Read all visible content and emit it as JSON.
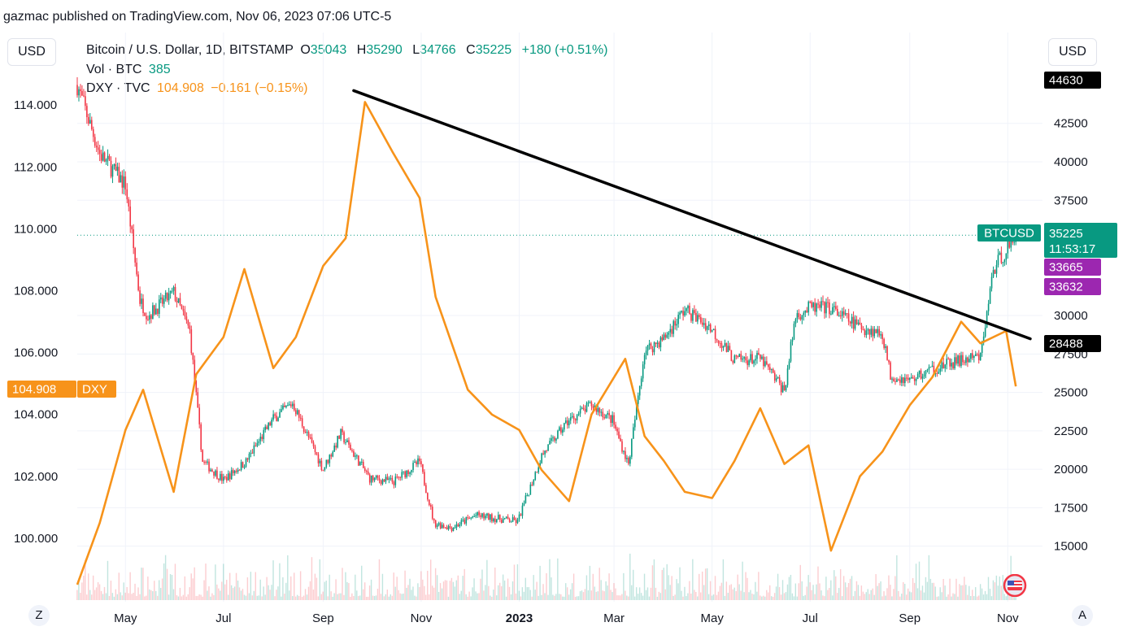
{
  "attribution": "gazmac published on TradingView.com, Nov 06, 2023 07:06 UTC-5",
  "currency_left": "USD",
  "currency_right": "USD",
  "legend": {
    "main_title": "Bitcoin / U.S. Dollar, 1D, BITSTAMP",
    "o_label": "O",
    "o_value": "35043",
    "h_label": "H",
    "h_value": "35290",
    "l_label": "L",
    "l_value": "34766",
    "c_label": "C",
    "c_value": "35225",
    "change": "+180 (+0.51%)",
    "vol_label": "Vol · BTC",
    "vol_value": "385",
    "dxy_label": "DXY · TVC",
    "dxy_value": "104.908",
    "dxy_change": "−0.161 (−0.15%)"
  },
  "buttons": {
    "z": "Z",
    "a": "A"
  },
  "colors": {
    "btc_up": "#089981",
    "btc_down": "#f23645",
    "dxy": "#f7931a",
    "trendline": "#000000",
    "label_black": "#000000",
    "label_purple": "#9c27b0",
    "label_green": "#089981"
  },
  "chart_data": {
    "type": "line",
    "series": [
      {
        "name": "BTCUSD",
        "style": "candlestick",
        "axis": "right",
        "dates": [
          "2022-04-01",
          "2022-04-15",
          "2022-05-01",
          "2022-05-10",
          "2022-05-15",
          "2022-05-31",
          "2022-06-10",
          "2022-06-18",
          "2022-07-01",
          "2022-07-15",
          "2022-08-01",
          "2022-08-13",
          "2022-09-01",
          "2022-09-12",
          "2022-09-30",
          "2022-10-15",
          "2022-10-31",
          "2022-11-09",
          "2022-11-20",
          "2022-12-05",
          "2022-12-31",
          "2023-01-15",
          "2023-01-31",
          "2023-02-15",
          "2023-02-28",
          "2023-03-10",
          "2023-03-20",
          "2023-04-01",
          "2023-04-14",
          "2023-04-30",
          "2023-05-15",
          "2023-05-31",
          "2023-06-15",
          "2023-06-22",
          "2023-07-01",
          "2023-07-13",
          "2023-07-31",
          "2023-08-15",
          "2023-08-20",
          "2023-09-01",
          "2023-09-15",
          "2023-09-30",
          "2023-10-15",
          "2023-10-23",
          "2023-11-06"
        ],
        "values": [
          45000,
          40500,
          38500,
          31000,
          30000,
          31500,
          29000,
          20500,
          19300,
          20500,
          23300,
          24300,
          20000,
          22300,
          19400,
          19200,
          20500,
          16500,
          16200,
          17000,
          16600,
          20900,
          23100,
          24200,
          23200,
          20300,
          27700,
          28500,
          30400,
          29200,
          27100,
          27200,
          25100,
          30000,
          30500,
          30500,
          29300,
          28800,
          26100,
          25800,
          26500,
          27000,
          27300,
          33000,
          35225
        ]
      },
      {
        "name": "DXY",
        "style": "line",
        "axis": "left",
        "dates": [
          "2022-04-01",
          "2022-04-15",
          "2022-05-01",
          "2022-05-12",
          "2022-05-31",
          "2022-06-14",
          "2022-07-01",
          "2022-07-14",
          "2022-08-01",
          "2022-08-15",
          "2022-09-01",
          "2022-09-15",
          "2022-09-27",
          "2022-10-14",
          "2022-10-31",
          "2022-11-10",
          "2022-11-30",
          "2022-12-15",
          "2023-01-01",
          "2023-01-15",
          "2023-02-01",
          "2023-02-15",
          "2023-03-08",
          "2023-03-20",
          "2023-04-01",
          "2023-04-14",
          "2023-05-01",
          "2023-05-15",
          "2023-05-31",
          "2023-06-15",
          "2023-06-30",
          "2023-07-14",
          "2023-08-01",
          "2023-08-15",
          "2023-09-01",
          "2023-09-15",
          "2023-10-03",
          "2023-10-15",
          "2023-10-31",
          "2023-11-06"
        ],
        "values": [
          98.5,
          100.5,
          103.5,
          104.8,
          101.5,
          105.3,
          106.5,
          108.7,
          105.5,
          106.5,
          108.8,
          109.7,
          114.1,
          112.5,
          111.0,
          107.8,
          104.8,
          104.0,
          103.5,
          102.2,
          101.2,
          104.0,
          105.8,
          103.3,
          102.5,
          101.5,
          101.3,
          102.5,
          104.2,
          102.4,
          103.0,
          99.6,
          102.0,
          102.8,
          104.3,
          105.2,
          107.0,
          106.3,
          106.7,
          104.908
        ]
      },
      {
        "name": "Vol · BTC",
        "style": "histogram",
        "axis": "none",
        "last_value": 385
      }
    ],
    "trendline": {
      "from": [
        "2022-09-20",
        44630
      ],
      "to": [
        "2023-11-15",
        28488
      ]
    },
    "left_axis": {
      "ticks": [
        "114.000",
        "112.000",
        "110.000",
        "108.000",
        "106.000",
        "104.000",
        "102.000",
        "100.000"
      ],
      "ylim": [
        99.0,
        114.9
      ]
    },
    "right_axis": {
      "ticks": [
        "42500",
        "40000",
        "37500",
        "30000",
        "27500",
        "25000",
        "22500",
        "20000",
        "17500",
        "15000"
      ],
      "ylim": [
        13500,
        45500
      ]
    },
    "x_axis": {
      "ticks": [
        "May",
        "Jul",
        "Sep",
        "Nov",
        "2023",
        "Mar",
        "May",
        "Jul",
        "Sep",
        "Nov"
      ]
    },
    "price_labels": [
      {
        "text": "44630",
        "kind": "black"
      },
      {
        "text": "BTCUSD",
        "kind": "green"
      },
      {
        "text": "35225",
        "kind": "green"
      },
      {
        "text": "11:53:17",
        "kind": "green"
      },
      {
        "text": "33665",
        "kind": "purple"
      },
      {
        "text": "33632",
        "kind": "purple"
      },
      {
        "text": "28488",
        "kind": "black"
      },
      {
        "text": "104.908",
        "kind": "orange"
      },
      {
        "text": "DXY",
        "kind": "orange"
      }
    ],
    "grid": true,
    "legend_position": "top-left"
  }
}
